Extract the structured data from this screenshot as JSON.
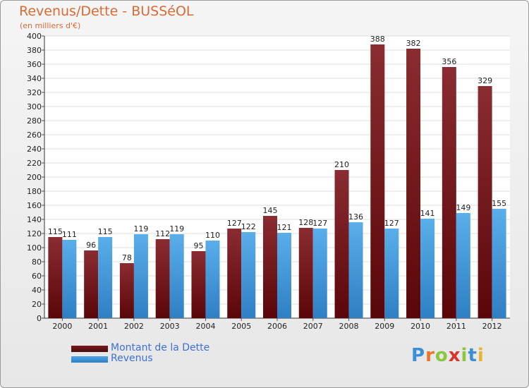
{
  "header": {
    "title": "Revenus/Dette - BUSSéOL",
    "subtitle": "(en milliers d'€)"
  },
  "chart_data": {
    "type": "bar",
    "title": "Revenus/Dette - BUSSéOL",
    "ylabel": "(en milliers d'€)",
    "xlabel": "",
    "ylim": [
      0,
      400
    ],
    "ytick_step": 20,
    "grid": true,
    "legend_position": "bottom-left",
    "categories": [
      "2000",
      "2001",
      "2002",
      "2003",
      "2004",
      "2005",
      "2006",
      "2007",
      "2008",
      "2009",
      "2010",
      "2011",
      "2012"
    ],
    "series": [
      {
        "name": "Montant de la Dette",
        "color": "#7a1a1d",
        "values": [
          115,
          96,
          78,
          112,
          95,
          127,
          145,
          128,
          210,
          388,
          382,
          356,
          329
        ]
      },
      {
        "name": "Revenus",
        "color": "#4aa3e6",
        "values": [
          111,
          115,
          119,
          119,
          110,
          122,
          121,
          127,
          136,
          127,
          141,
          149,
          155
        ]
      }
    ]
  },
  "legend": {
    "items": [
      {
        "label": "Montant de la Dette",
        "color": "#7a1a1d"
      },
      {
        "label": "Revenus",
        "color": "#4aa3e6"
      }
    ]
  },
  "logo": {
    "letters": [
      "P",
      "r",
      "o",
      "x",
      "i",
      "t",
      "i"
    ],
    "colors": [
      "#3a8fd6",
      "#e8762a",
      "#8cc63f",
      "#d9342b",
      "#8cc63f",
      "#3a8fd6",
      "#e8b52a"
    ]
  }
}
